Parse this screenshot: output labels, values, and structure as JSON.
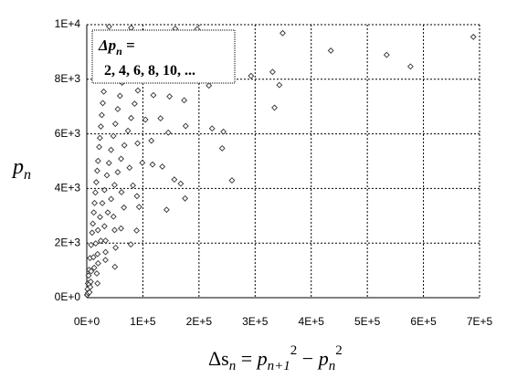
{
  "chart_data": {
    "type": "scatter",
    "ylabel": [
      "p",
      "n"
    ],
    "xlabel": [
      "Δs",
      "n",
      " = ",
      "p",
      "n+1",
      "2",
      " − ",
      "p",
      "n",
      "2"
    ],
    "legend_text": [
      "Δp",
      "n",
      " =",
      "2,  4, 6,  8, 10,  ..."
    ],
    "color": "#333333",
    "grid": true,
    "xlim": [
      0,
      700000
    ],
    "ylim": [
      0,
      10000
    ],
    "xticks": [
      {
        "value": 0,
        "label": "0E+0"
      },
      {
        "value": 100000,
        "label": "1E+5"
      },
      {
        "value": 200000,
        "label": "2E+5"
      },
      {
        "value": 300000,
        "label": "3E+5"
      },
      {
        "value": 400000,
        "label": "4E+5"
      },
      {
        "value": 500000,
        "label": "5E+5"
      },
      {
        "value": 600000,
        "label": "6E+5"
      },
      {
        "value": 700000,
        "label": "7E+5"
      }
    ],
    "yticks": [
      {
        "value": 0,
        "label": "0E+0"
      },
      {
        "value": 2000,
        "label": "2E+3"
      },
      {
        "value": 4000,
        "label": "4E+3"
      },
      {
        "value": 6000,
        "label": "6E+3"
      },
      {
        "value": 8000,
        "label": "8E+3"
      },
      {
        "value": 10000,
        "label": "1E+4"
      }
    ],
    "x": [
      408,
      1248,
      2088,
      3240,
      4080,
      5808,
      7728,
      9528,
      10848,
      12480,
      13872,
      15408,
      16920,
      18600,
      20040,
      22080,
      23400,
      25080,
      26760,
      28512,
      30192,
      31800,
      33552,
      35280,
      36960,
      38520,
      39720,
      840,
      3912,
      7752,
      11880,
      15912,
      19800,
      23640,
      27720,
      31560,
      35880,
      39480,
      43320,
      47400,
      50952,
      55272,
      59160,
      63000,
      66840,
      71160,
      75144,
      79080,
      2112,
      7080,
      13200,
      19200,
      25032,
      31440,
      37488,
      43392,
      49560,
      55200,
      61080,
      67008,
      73392,
      79008,
      85272,
      91104,
      97008,
      103200,
      109128,
      115080,
      6288,
      20208,
      33488,
      47568,
      61872,
      76208,
      90512,
      104400,
      118736,
      132816,
      147056,
      157680,
      17840,
      33480,
      49640,
      66120,
      82320,
      98960,
      115080,
      131480,
      147480,
      163920,
      180120,
      196760,
      4920,
      33288,
      61080,
      89400,
      117192,
      145272,
      173640,
      201480,
      226680,
      51464,
      93240,
      134624,
      176232,
      217728,
      258944,
      19152,
      88848,
      156096,
      223416,
      292752,
      349128,
      78440,
      167480,
      243560,
      331160,
      50160,
      142208,
      241208,
      343200,
      175152,
      334608,
      434928,
      258720,
      534480,
      576912,
      688968
    ],
    "values": [
      101,
      311,
      521,
      809,
      1019,
      1451,
      1931,
      2381,
      2711,
      3119,
      3467,
      3851,
      4229,
      4649,
      5009,
      5519,
      5849,
      6269,
      6689,
      7127,
      7547,
      7949,
      8387,
      8819,
      9239,
      9629,
      9929,
      103,
      487,
      967,
      1483,
      1987,
      2473,
      2953,
      3463,
      3943,
      4483,
      4933,
      5413,
      5923,
      6367,
      6907,
      7393,
      7873,
      8353,
      8893,
      9391,
      9883,
      173,
      587,
      1097,
      1597,
      2083,
      2617,
      3121,
      3613,
      4127,
      4597,
      5087,
      5581,
      6113,
      6581,
      7103,
      7589,
      8081,
      8597,
      9091,
      9587,
      389,
      1259,
      2089,
      2969,
      3863,
      4759,
      5653,
      6521,
      7417,
      8297,
      9187,
      9851,
      887,
      1669,
      2477,
      3301,
      4111,
      4943,
      5749,
      6569,
      7369,
      8191,
      9001,
      9833,
      199,
      1381,
      2539,
      3719,
      4877,
      6047,
      7229,
      8389,
      9439,
      1831,
      3323,
      4801,
      6287,
      7769,
      9241,
      523,
      2459,
      4327,
      6197,
      8123,
      9689,
      1951,
      4177,
      6079,
      8269,
      1129,
      3221,
      5471,
      7789,
      3637,
      6959,
      9049,
      4297,
      8893,
      8467,
      9551
    ]
  }
}
